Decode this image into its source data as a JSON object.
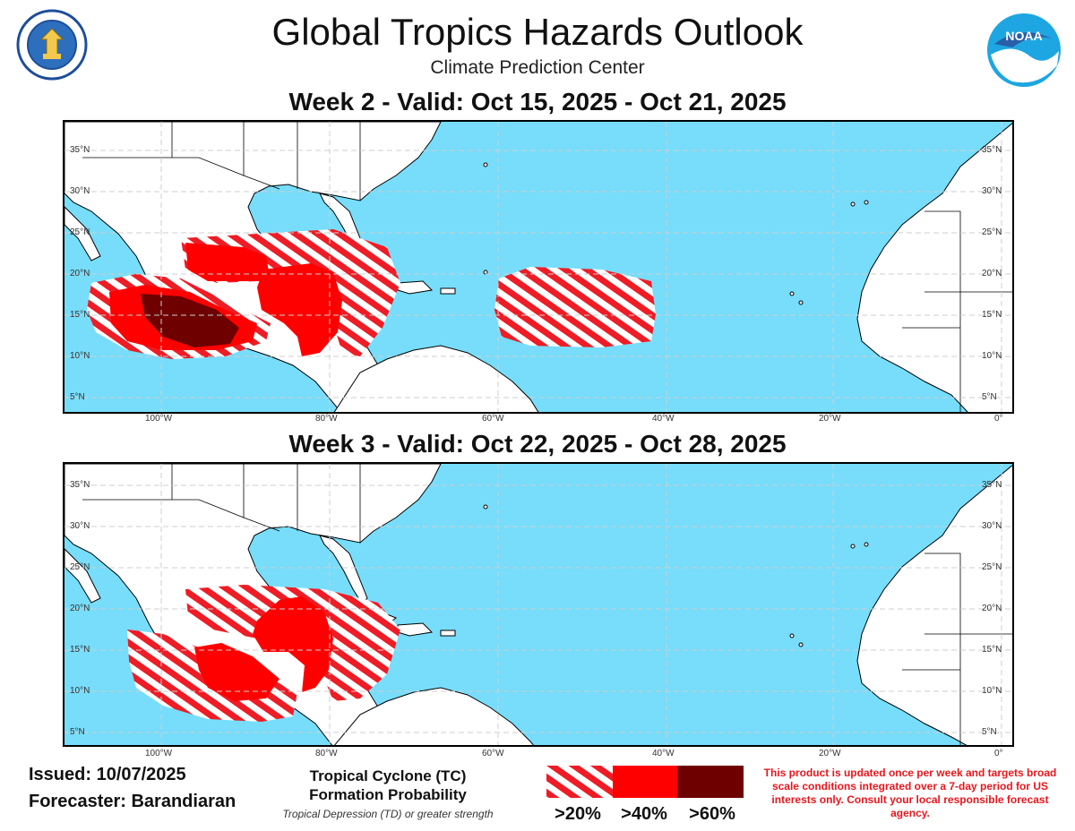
{
  "header": {
    "title": "Global Tropics Hazards Outlook",
    "subtitle": "Climate Prediction Center"
  },
  "logos": {
    "dept_seal_icon": "department-of-commerce-seal",
    "dept_seal_text": "DEPARTMENT OF COMMERCE · UNITED STATES OF AMERICA",
    "noaa_icon": "noaa-logo",
    "noaa_text": "NOAA"
  },
  "weeks": [
    {
      "title": "Week 2 - Valid: Oct 15, 2025 - Oct 21, 2025"
    },
    {
      "title": "Week 3 - Valid: Oct 22, 2025 - Oct 28, 2025"
    }
  ],
  "map_axes": {
    "lat_labels": [
      "35°N",
      "30°N",
      "25°N",
      "20°N",
      "15°N",
      "10°N",
      "5°N"
    ],
    "lon_labels": [
      "100°W",
      "80°W",
      "60°W",
      "40°W",
      "20°W",
      "0°"
    ]
  },
  "footer": {
    "issued": "Issued: 10/07/2025",
    "forecaster": "Forecaster: Barandiaran"
  },
  "legend": {
    "title_line1": "Tropical Cyclone (TC)",
    "title_line2": "Formation Probability",
    "subtitle": "Tropical Depression (TD) or greater strength",
    "categories": [
      {
        "label": ">20%",
        "color": "#ee1c25",
        "pattern": "hatched"
      },
      {
        "label": ">40%",
        "color": "#ff0000",
        "pattern": "solid"
      },
      {
        "label": ">60%",
        "color": "#6e0000",
        "pattern": "solid"
      }
    ]
  },
  "disclaimer": "This product is updated once per week and targets broad scale conditions integrated over a 7-day period for US interests only. Consult your local responsible forecast agency.",
  "colors": {
    "ocean": "#77ddfb",
    "land": "#ffffff",
    "hatch": "#ee1c25",
    "p40": "#ff0000",
    "p60": "#6e0000",
    "disclaimer": "#e8161c"
  }
}
